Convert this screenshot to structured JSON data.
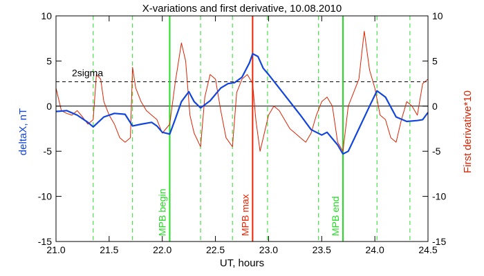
{
  "chart_data": {
    "type": "line",
    "title": "X-variations and first derivative, 10.08.2010",
    "xlabel": "UT, hours",
    "ylabel": "deltaX, nT",
    "ylabel_right": "First derivative*10",
    "xlim": [
      21.0,
      24.5
    ],
    "ylim": [
      -15,
      10
    ],
    "x_ticks": [
      "21.0",
      "21.5",
      "22.0",
      "22.5",
      "23.0",
      "23.5",
      "24.0",
      "24.5"
    ],
    "y_ticks": [
      "10",
      "5",
      "0",
      "-5",
      "-10",
      "-15"
    ],
    "y_ticks_right": [
      "10",
      "5",
      "0",
      "-5",
      "-10",
      "-15"
    ],
    "reference_lines": [
      {
        "label": "2sigma",
        "y": 2.7,
        "style": "dashed",
        "color": "#000000"
      },
      {
        "label": "",
        "y": 0,
        "style": "solid",
        "color": "#000000"
      }
    ],
    "dashed_vertical_lines": [
      21.35,
      21.72,
      22.36,
      22.66,
      22.99,
      23.47,
      24.02,
      24.33
    ],
    "markers": [
      {
        "label": "MPB begin",
        "x": 22.07,
        "color": "#22dd22"
      },
      {
        "label": "MPB max",
        "x": 22.85,
        "color": "#ee2200"
      },
      {
        "label": "MPB end",
        "x": 23.7,
        "color": "#22dd22"
      }
    ],
    "series": [
      {
        "color": "#1144dd",
        "x": [
          21.0,
          21.1,
          21.2,
          21.3,
          21.35,
          21.45,
          21.55,
          21.65,
          21.72,
          21.8,
          21.9,
          21.95,
          22.0,
          22.07,
          22.12,
          22.18,
          22.25,
          22.3,
          22.36,
          22.45,
          22.55,
          22.62,
          22.68,
          22.75,
          22.82,
          22.85,
          22.9,
          22.95,
          23.0,
          23.1,
          23.2,
          23.3,
          23.4,
          23.5,
          23.55,
          23.6,
          23.65,
          23.7,
          23.75,
          23.85,
          23.95,
          24.02,
          24.1,
          24.2,
          24.3,
          24.4,
          24.45,
          24.5
        ],
        "values": [
          -0.6,
          -0.5,
          -1.0,
          -1.8,
          -2.3,
          -1.2,
          -0.8,
          -0.9,
          -2.2,
          -2.0,
          -1.8,
          -2.2,
          -2.9,
          -3.1,
          -1.5,
          0.5,
          1.6,
          0.5,
          -0.2,
          0.6,
          2.0,
          2.5,
          2.6,
          3.2,
          4.8,
          5.8,
          5.5,
          4.2,
          3.5,
          2.0,
          0.5,
          -1.0,
          -2.6,
          -3.2,
          -2.9,
          -3.6,
          -4.3,
          -5.3,
          -5.0,
          -2.5,
          0.0,
          1.7,
          1.0,
          -1.2,
          -1.7,
          -1.6,
          -1.5,
          -0.7
        ]
      },
      {
        "color": "#dd2200",
        "x": [
          21.0,
          21.05,
          21.1,
          21.15,
          21.2,
          21.25,
          21.3,
          21.35,
          21.38,
          21.42,
          21.45,
          21.5,
          21.55,
          21.6,
          21.65,
          21.7,
          21.72,
          21.75,
          21.8,
          21.85,
          21.9,
          21.95,
          22.0,
          22.07,
          22.12,
          22.18,
          22.22,
          22.26,
          22.3,
          22.36,
          22.4,
          22.45,
          22.5,
          22.55,
          22.6,
          22.66,
          22.7,
          22.75,
          22.8,
          22.85,
          22.88,
          22.92,
          22.96,
          23.0,
          23.05,
          23.1,
          23.15,
          23.2,
          23.25,
          23.3,
          23.35,
          23.4,
          23.45,
          23.5,
          23.55,
          23.6,
          23.65,
          23.7,
          23.75,
          23.8,
          23.85,
          23.9,
          23.95,
          24.0,
          24.05,
          24.1,
          24.15,
          24.2,
          24.25,
          24.3,
          24.35,
          24.4,
          24.45,
          24.5
        ],
        "values": [
          2.0,
          -0.5,
          -0.8,
          -1.0,
          -0.5,
          -1.2,
          -2.0,
          -1.5,
          3.5,
          3.0,
          0.5,
          -1.0,
          -2.0,
          -3.5,
          -4.0,
          -3.5,
          4.3,
          2.0,
          0.5,
          -0.5,
          -1.0,
          -1.5,
          -3.0,
          -2.0,
          2.5,
          7.0,
          5.0,
          -1.0,
          -3.0,
          -4.5,
          1.0,
          3.5,
          3.0,
          -0.5,
          -3.5,
          -4.5,
          1.5,
          3.0,
          3.5,
          2.5,
          -1.5,
          -5.0,
          -3.0,
          -1.0,
          0.0,
          -0.5,
          -1.5,
          -2.5,
          -3.0,
          -3.5,
          -4.0,
          -3.0,
          -1.0,
          0.5,
          1.0,
          0.0,
          -4.0,
          -5.0,
          0.0,
          1.5,
          3.0,
          8.3,
          4.0,
          2.0,
          -1.0,
          -1.5,
          -3.5,
          -4.0,
          -1.5,
          0.5,
          0.0,
          -1.0,
          2.5,
          3.0
        ]
      }
    ]
  }
}
